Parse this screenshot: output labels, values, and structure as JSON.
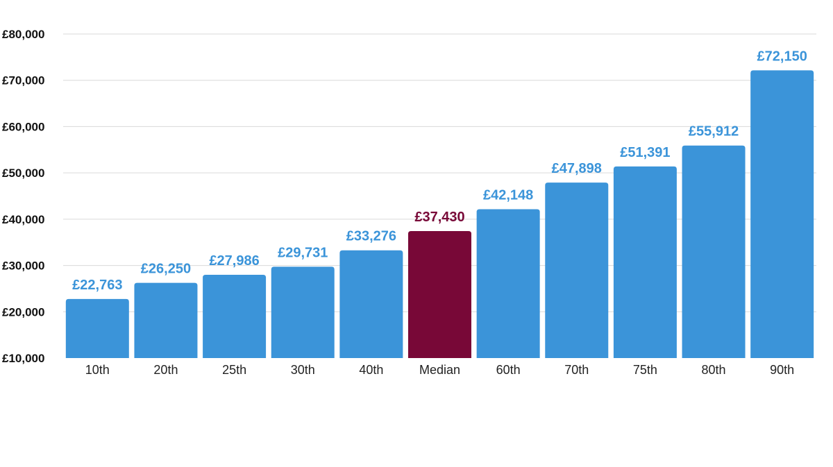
{
  "chart_data": {
    "type": "bar",
    "categories": [
      "10th",
      "20th",
      "25th",
      "30th",
      "40th",
      "Median",
      "60th",
      "70th",
      "75th",
      "80th",
      "90th"
    ],
    "values": [
      22763,
      26250,
      27986,
      29731,
      33276,
      37430,
      42148,
      47898,
      51391,
      55912,
      72150
    ],
    "data_labels": [
      "£22,763",
      "£26,250",
      "£27,986",
      "£29,731",
      "£33,276",
      "£37,430",
      "£42,148",
      "£47,898",
      "£51,391",
      "£55,912",
      "£72,150"
    ],
    "y_ticks": [
      10000,
      20000,
      30000,
      40000,
      50000,
      60000,
      70000,
      80000
    ],
    "y_tick_labels": [
      "£10,000",
      "£20,000",
      "£30,000",
      "£40,000",
      "£50,000",
      "£60,000",
      "£70,000",
      "£80,000"
    ],
    "ylim": [
      10000,
      80000
    ],
    "grid": true,
    "highlight_category": "Median",
    "colors": {
      "bar": "#3b94d9",
      "highlight": "#780837"
    }
  }
}
